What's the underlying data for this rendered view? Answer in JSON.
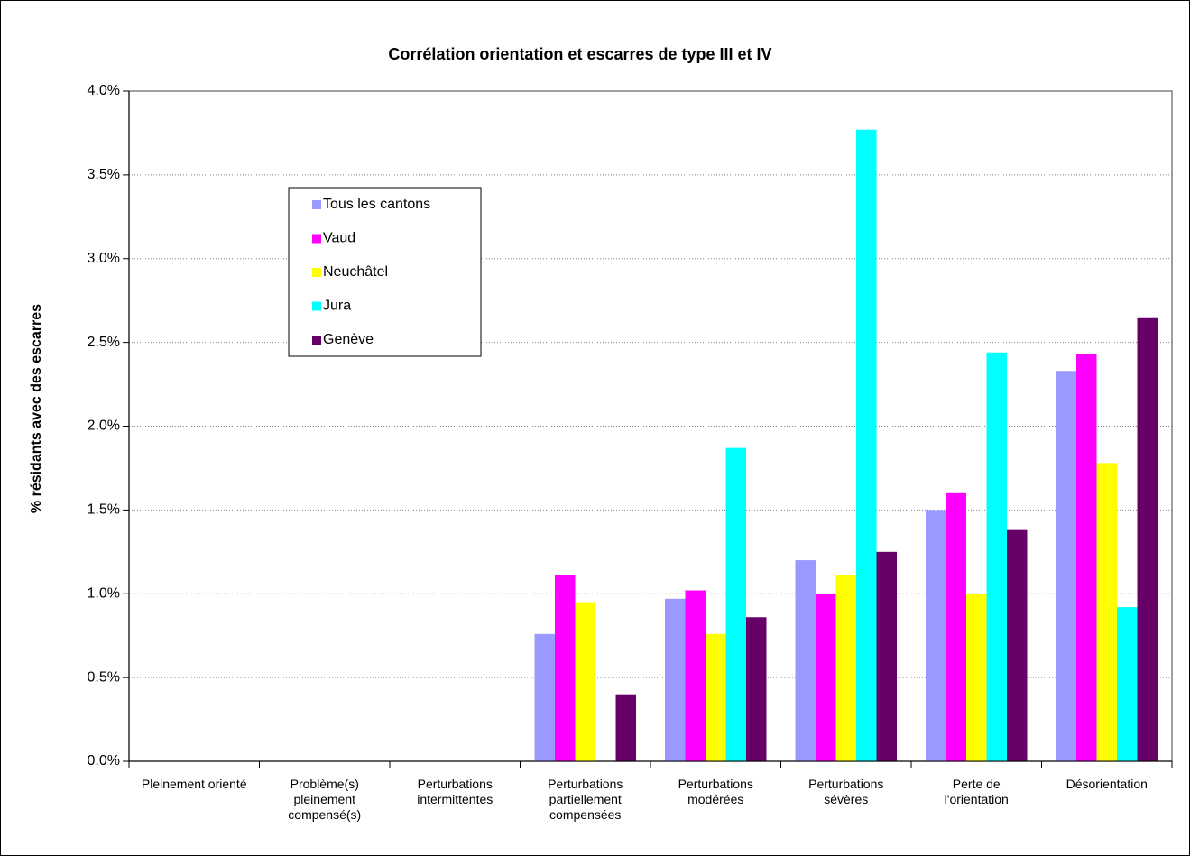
{
  "chart_data": {
    "type": "bar",
    "title": "Corrélation orientation et escarres de type III et IV",
    "y_label": "% résidants avec des escarres",
    "categories": [
      "Pleinement orienté",
      "Problème(s) pleinement compensé(s)",
      "Perturbations intermittentes",
      "Perturbations partiellement compensées",
      "Perturbations modérées",
      "Perturbations sévères",
      "Perte de l'orientation",
      "Désorientation"
    ],
    "series": [
      {
        "name": "Tous les cantons",
        "color": "#9999ff",
        "values": [
          0,
          0,
          0,
          0.76,
          0.97,
          1.2,
          1.5,
          2.33
        ]
      },
      {
        "name": "Vaud",
        "color": "#ff00ff",
        "values": [
          0,
          0,
          0,
          1.11,
          1.02,
          1.0,
          1.6,
          2.43
        ]
      },
      {
        "name": "Neuchâtel",
        "color": "#ffff00",
        "values": [
          0,
          0,
          0,
          0.95,
          0.76,
          1.11,
          1.0,
          1.78
        ]
      },
      {
        "name": "Jura",
        "color": "#00ffff",
        "values": [
          0,
          0,
          0,
          0,
          1.87,
          3.77,
          2.44,
          0.92
        ]
      },
      {
        "name": "Genève",
        "color": "#660066",
        "values": [
          0,
          0,
          0,
          0.4,
          0.86,
          1.25,
          1.38,
          2.65
        ]
      }
    ],
    "ylim": [
      0,
      4
    ],
    "yticks": [
      {
        "value": 0,
        "label": "0.0%"
      },
      {
        "value": 0.5,
        "label": "0.5%"
      },
      {
        "value": 1,
        "label": "1.0%"
      },
      {
        "value": 1.5,
        "label": "1.5%"
      },
      {
        "value": 2,
        "label": "2.0%"
      },
      {
        "value": 2.5,
        "label": "2.5%"
      },
      {
        "value": 3,
        "label": "3.0%"
      },
      {
        "value": 3.5,
        "label": "3.5%"
      },
      {
        "value": 4,
        "label": "4.0%"
      }
    ],
    "grid": true,
    "legend": "upper-left"
  }
}
